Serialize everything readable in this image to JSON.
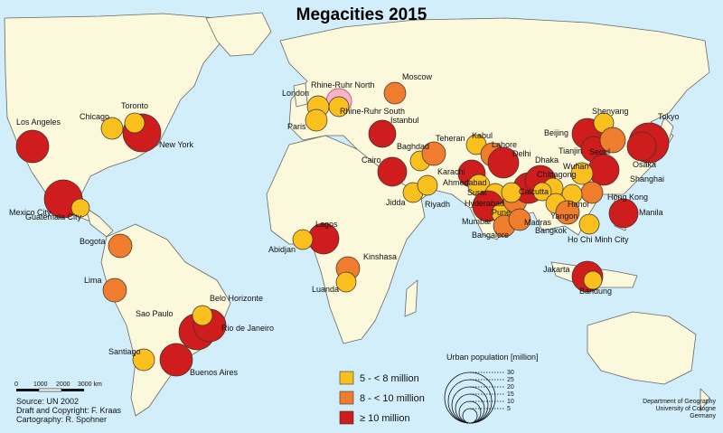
{
  "title": "Megacities 2015",
  "colors": {
    "ocean": "#d2eefa",
    "land": "#fbf8dc",
    "small": "#f9c01e",
    "medium": "#f07c2e",
    "large": "#cf1c1c"
  },
  "cities": [
    {
      "name": "Los Angeles",
      "cls": "large"
    },
    {
      "name": "Mexico City",
      "cls": "large"
    },
    {
      "name": "Guatemala City",
      "cls": "small"
    },
    {
      "name": "Chicago",
      "cls": "small"
    },
    {
      "name": "Toronto",
      "cls": "small"
    },
    {
      "name": "New York",
      "cls": "large"
    },
    {
      "name": "Bogota",
      "cls": "medium"
    },
    {
      "name": "Lima",
      "cls": "medium"
    },
    {
      "name": "Belo Horizonte",
      "cls": "small"
    },
    {
      "name": "Sao Paulo",
      "cls": "large"
    },
    {
      "name": "Rio de Janeiro",
      "cls": "large"
    },
    {
      "name": "Santiago",
      "cls": "small"
    },
    {
      "name": "Buenos Aires",
      "cls": "large"
    },
    {
      "name": "London",
      "cls": "small"
    },
    {
      "name": "Paris",
      "cls": "small"
    },
    {
      "name": "Rhine-Ruhr North",
      "cls": "small"
    },
    {
      "name": "Rhine-Ruhr South",
      "cls": "small"
    },
    {
      "name": "Moscow",
      "cls": "medium"
    },
    {
      "name": "Istanbul",
      "cls": "large"
    },
    {
      "name": "Cairo",
      "cls": "large"
    },
    {
      "name": "Baghdad",
      "cls": "small"
    },
    {
      "name": "Teheran",
      "cls": "medium"
    },
    {
      "name": "Karachi",
      "cls": "large"
    },
    {
      "name": "Kabul",
      "cls": "small"
    },
    {
      "name": "Lahore",
      "cls": "medium"
    },
    {
      "name": "Delhi",
      "cls": "large"
    },
    {
      "name": "Ahmedabad",
      "cls": "small"
    },
    {
      "name": "Surat",
      "cls": "small"
    },
    {
      "name": "Mumbai",
      "cls": "large"
    },
    {
      "name": "Pune",
      "cls": "small"
    },
    {
      "name": "Hyderabad",
      "cls": "medium"
    },
    {
      "name": "Bangalore",
      "cls": "medium"
    },
    {
      "name": "Madras",
      "cls": "medium"
    },
    {
      "name": "Calcutta",
      "cls": "large"
    },
    {
      "name": "Dhaka",
      "cls": "large"
    },
    {
      "name": "Chittagong",
      "cls": "small"
    },
    {
      "name": "Jidda",
      "cls": "small"
    },
    {
      "name": "Riyadh",
      "cls": "small"
    },
    {
      "name": "Lagos",
      "cls": "large"
    },
    {
      "name": "Abidjan",
      "cls": "small"
    },
    {
      "name": "Kinshasa",
      "cls": "medium"
    },
    {
      "name": "Luanda",
      "cls": "small"
    },
    {
      "name": "Beijing",
      "cls": "large"
    },
    {
      "name": "Shenyang",
      "cls": "small"
    },
    {
      "name": "Tianjin",
      "cls": "large"
    },
    {
      "name": "Seoul",
      "cls": "medium"
    },
    {
      "name": "Tokyo",
      "cls": "large"
    },
    {
      "name": "Osaka",
      "cls": "large"
    },
    {
      "name": "Shanghai",
      "cls": "large"
    },
    {
      "name": "Wuhan",
      "cls": "small"
    },
    {
      "name": "Hong Kong",
      "cls": "medium"
    },
    {
      "name": "Manila",
      "cls": "large"
    },
    {
      "name": "Hanoi",
      "cls": "small"
    },
    {
      "name": "Yangon",
      "cls": "small"
    },
    {
      "name": "Bangkok",
      "cls": "medium"
    },
    {
      "name": "Ho Chi Minh City",
      "cls": "small"
    },
    {
      "name": "Jakarta",
      "cls": "large"
    },
    {
      "name": "Bandung",
      "cls": "small"
    }
  ],
  "legend": {
    "classes": [
      {
        "label": "5 - < 8 million",
        "cls": "small"
      },
      {
        "label": "8 - < 10 million",
        "cls": "medium"
      },
      {
        "label": "≥ 10 million",
        "cls": "large"
      }
    ],
    "size_title": "Urban population [million]",
    "size_values": [
      "30",
      "25",
      "20",
      "15",
      "10",
      "5"
    ]
  },
  "scale": {
    "ticks": [
      "0",
      "1000",
      "2000",
      "3000 km"
    ]
  },
  "credits": [
    "Source: UN 2002",
    "Draft and Copyright: F. Kraas",
    "Cartography: R. Spohner"
  ],
  "department": [
    "Department of Geography",
    "University of Cologne",
    "Germany"
  ]
}
